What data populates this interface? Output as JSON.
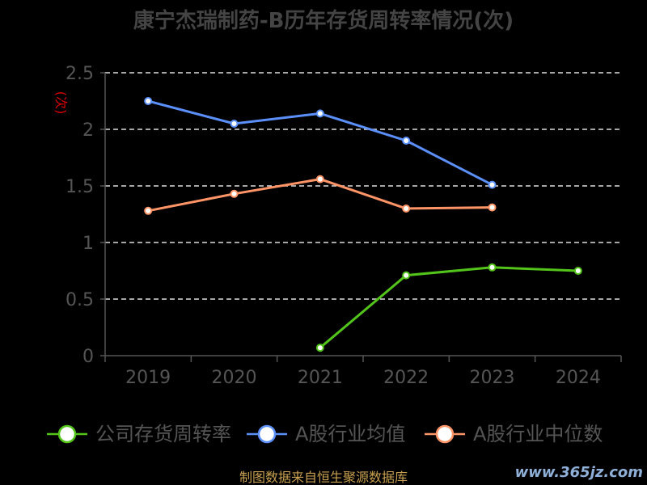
{
  "chart_data": {
    "type": "line",
    "title": "康宁杰瑞制药-B历年存货周转率情况(次)",
    "ylabel": "(次)",
    "categories": [
      "2019",
      "2020",
      "2021",
      "2022",
      "2023",
      "2024"
    ],
    "ylim": [
      0,
      2.5
    ],
    "yticks": [
      "0",
      "0.5",
      "1",
      "1.5",
      "2",
      "2.5"
    ],
    "grid": true,
    "legend_position": "bottom",
    "series": [
      {
        "name": "公司存货周转率",
        "color": "#52c41a",
        "values": [
          null,
          null,
          0.07,
          0.71,
          0.78,
          0.75
        ]
      },
      {
        "name": "A股行业均值",
        "color": "#5b8ff9",
        "values": [
          2.25,
          2.05,
          2.14,
          1.9,
          1.51,
          null
        ]
      },
      {
        "name": "A股行业中位数",
        "color": "#ff9466",
        "values": [
          1.28,
          1.43,
          1.56,
          1.3,
          1.31,
          null
        ]
      }
    ]
  },
  "source": "制图数据来自恒生聚源数据库",
  "watermark": "www.365jz.com"
}
